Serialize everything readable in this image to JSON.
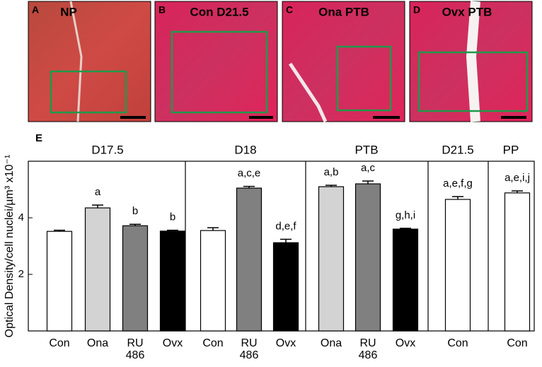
{
  "panels": [
    {
      "letter": "A",
      "title": "NP"
    },
    {
      "letter": "B",
      "title": "Con D21.5"
    },
    {
      "letter": "C",
      "title": "Ona PTB"
    },
    {
      "letter": "D",
      "title": "Ovx PTB"
    }
  ],
  "chart_data": {
    "type": "bar",
    "panel_letter": "E",
    "y_label": "Optical Density/cell nuclei/µm³ x10⁻¹",
    "ylim": [
      0,
      6
    ],
    "yticks": [
      2,
      4
    ],
    "groups": [
      {
        "name": "D17.5",
        "categories": [
          "Con",
          "Ona",
          "RU 486",
          "Ovx"
        ],
        "values": [
          3.52,
          4.35,
          3.72,
          3.53
        ],
        "errors": [
          0.04,
          0.1,
          0.05,
          0.03
        ],
        "colors": [
          "#ffffff",
          "#d3d3d3",
          "#808080",
          "#000000"
        ],
        "annotations": [
          null,
          "a",
          "b",
          "b"
        ]
      },
      {
        "name": "D18",
        "categories": [
          "Con",
          "RU 486",
          "Ovx"
        ],
        "values": [
          3.55,
          5.05,
          3.12
        ],
        "errors": [
          0.1,
          0.06,
          0.12
        ],
        "colors": [
          "#ffffff",
          "#808080",
          "#000000"
        ],
        "annotations": [
          null,
          "a,c,e",
          "d,e,f"
        ]
      },
      {
        "name": "PTB",
        "categories": [
          "Ona",
          "RU 486",
          "Ovx"
        ],
        "values": [
          5.1,
          5.2,
          3.6
        ],
        "errors": [
          0.05,
          0.1,
          0.03
        ],
        "colors": [
          "#d3d3d3",
          "#808080",
          "#000000"
        ],
        "annotations": [
          "a,b",
          "a,c",
          "g,h,i"
        ]
      },
      {
        "name": "D21.5",
        "categories": [
          "Con"
        ],
        "values": [
          4.65
        ],
        "errors": [
          0.1
        ],
        "colors": [
          "#ffffff"
        ],
        "annotations": [
          "a,e,f,g"
        ]
      },
      {
        "name": "PP",
        "categories": [
          "Con"
        ],
        "values": [
          4.88
        ],
        "errors": [
          0.07
        ],
        "colors": [
          "#ffffff"
        ],
        "annotations": [
          "a,e,i,j"
        ]
      }
    ]
  }
}
